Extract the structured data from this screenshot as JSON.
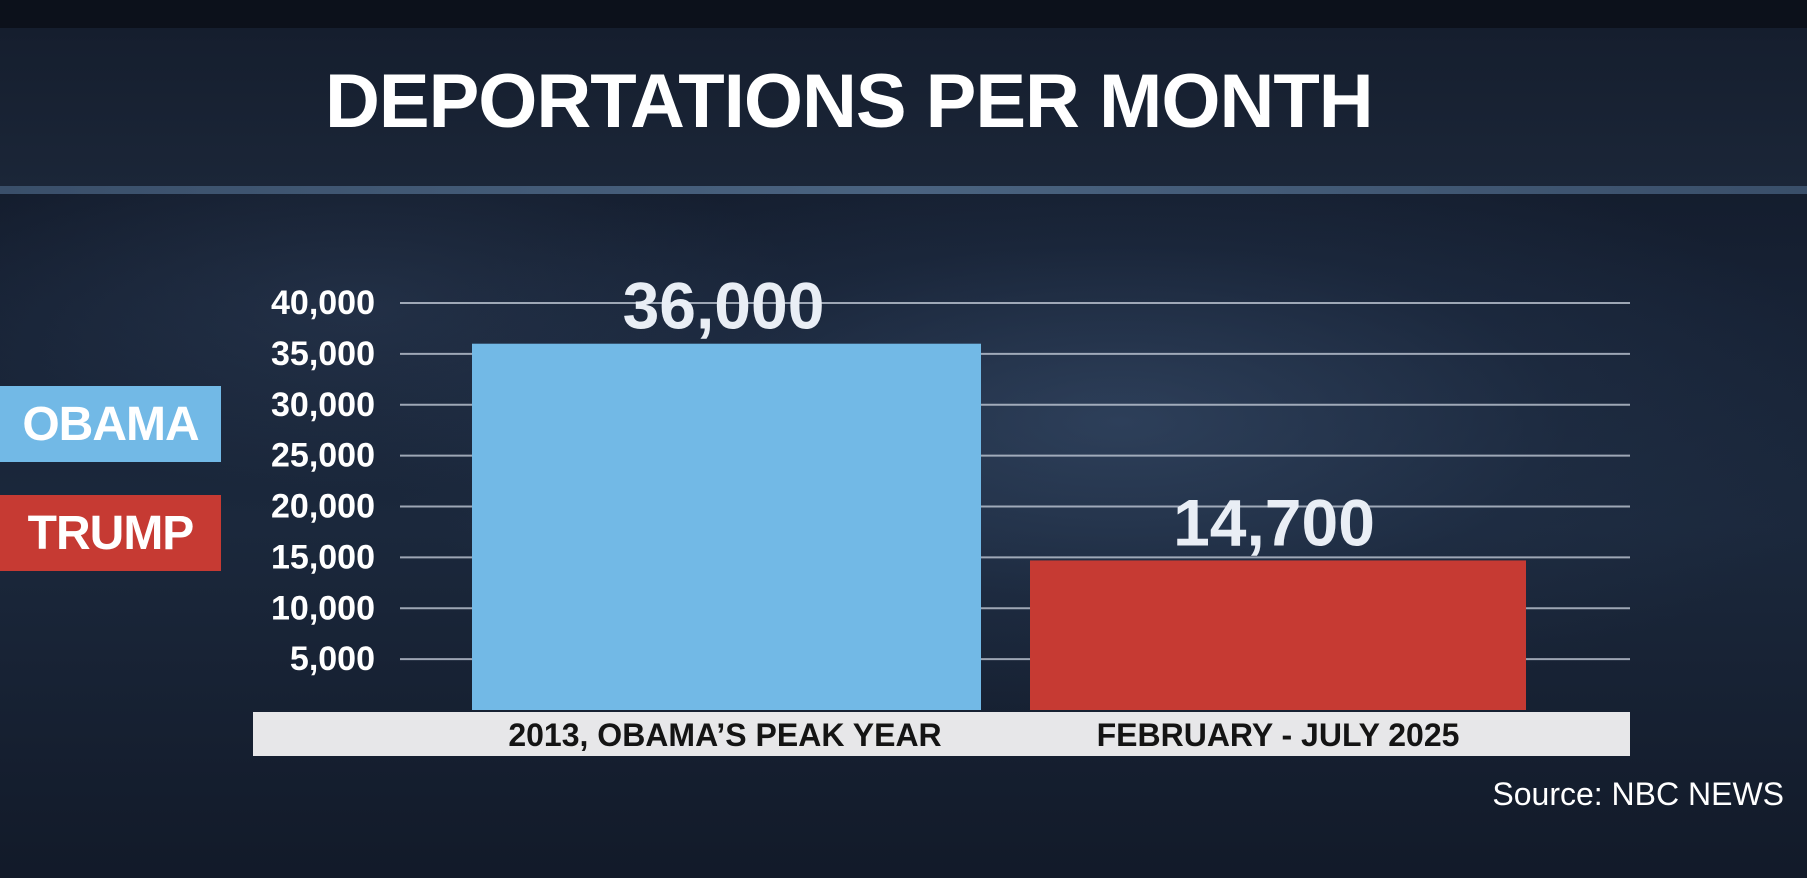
{
  "chart_data": {
    "type": "bar",
    "title": "DEPORTATIONS PER MONTH",
    "categories": [
      "2013, OBAMA’S PEAK YEAR",
      "FEBRUARY - JULY 2025"
    ],
    "values": [
      36000,
      14700
    ],
    "value_labels": [
      "36,000",
      "14,700"
    ],
    "bar_colors": [
      "#72b9e6",
      "#c63a33"
    ],
    "yticks": [
      5000,
      10000,
      15000,
      20000,
      25000,
      30000,
      35000,
      40000
    ],
    "ytick_labels": [
      "5,000",
      "10,000",
      "15,000",
      "20,000",
      "25,000",
      "30,000",
      "35,000",
      "40,000"
    ],
    "ylim": [
      0,
      40000
    ],
    "grid": true,
    "xlabel": "",
    "ylabel": "",
    "legend": {
      "placement": "left",
      "entries": [
        {
          "label": "OBAMA",
          "color": "#72b9e6"
        },
        {
          "label": "TRUMP",
          "color": "#c63a33"
        }
      ]
    },
    "source": "Source: NBC NEWS"
  }
}
